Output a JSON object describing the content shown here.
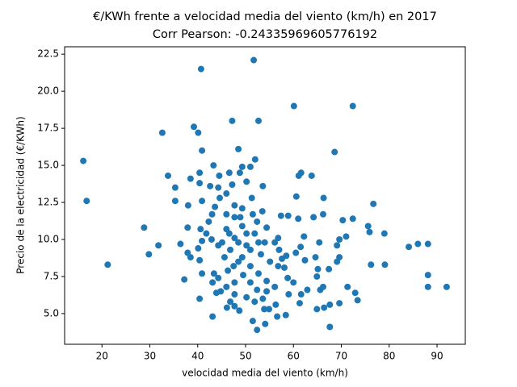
{
  "chart_data": {
    "type": "scatter",
    "title": "€/KWh frente a velocidad media del viento (km/h) en 2017",
    "subtitle": "Corr Pearson: -0.24335969605776192",
    "x_label": "velocidad media del viento (km/h)",
    "y_label": "Precio de la electricidad (€/KWh)",
    "color": "#1f77b4",
    "xlim": [
      12.2,
      95.9
    ],
    "ylim": [
      2.93,
      23.0
    ],
    "xticks": [
      20,
      30,
      40,
      50,
      60,
      70,
      80,
      90
    ],
    "yticks": [
      {
        "value": 5,
        "label": "5.0"
      },
      7.5,
      {
        "value": 10,
        "label": "10.0"
      },
      12.5,
      {
        "value": 15,
        "label": "15.0"
      },
      17.5,
      {
        "value": 20,
        "label": "20.0"
      },
      22.5
    ],
    "x": [
      16.1,
      16.8,
      21.2,
      28.8,
      29.8,
      31.8,
      32.6,
      33.8,
      35.3,
      35.3,
      36.4,
      37.2,
      37.9,
      38.0,
      38.5,
      39.2,
      40.1,
      40.7,
      40.9,
      40.4,
      40.4,
      40.9,
      40.6,
      40.4,
      43.3,
      42.6,
      43.1,
      44.5,
      47.2,
      48.5,
      51.7,
      52.7,
      52.0,
      51.0,
      49.3,
      53.6,
      60.1,
      72.4,
      68.6,
      60.6,
      61.1,
      61.6,
      63.8,
      66.3,
      76.7,
      72.4,
      70.3,
      75.6,
      75.9,
      79.0,
      71.0,
      69.6,
      69.1,
      84.1,
      86.0,
      88.1,
      76.2,
      79.1,
      88.1,
      88.1,
      92.0,
      72.9,
      73.4,
      71.3,
      69.6,
      67.6,
      66.4,
      67.6,
      64.9,
      62.9,
      64.9,
      65.1,
      69.1,
      69.6,
      67.4,
      66.2,
      65.6,
      60.0,
      61.6,
      61.3,
      61.0,
      61.5,
      62.2,
      64.2,
      66.2,
      65.4,
      64.6,
      62.4,
      60.5,
      57.4,
      58.9,
      56.8,
      56.1,
      57.0,
      57.6,
      58.1,
      58.8,
      59.0,
      58.4,
      56.6,
      56.3,
      54.9,
      53.9,
      54.1,
      52.4,
      51.5,
      48.7,
      47.7,
      46.1,
      44.8,
      43.9,
      43.1,
      43.4,
      40.9,
      40.4,
      38.5,
      37.9,
      40.1,
      40.9,
      41.8,
      42.3,
      43.0,
      43.6,
      44.6,
      44.3,
      46.0,
      47.2,
      46.6,
      48.8,
      50.2,
      51.3,
      53.5,
      51.5,
      54.4,
      54.0,
      53.2,
      51.0,
      49.5,
      47.5,
      45.6,
      44.3,
      42.9,
      46.6,
      48.9,
      50.2,
      48.5,
      46.8,
      45.1,
      49.3,
      51.0,
      52.7,
      54.4,
      56.1,
      54.4,
      52.4,
      50.2,
      47.7,
      46.0,
      44.3,
      47.7,
      49.3,
      51.9,
      47.7,
      46.0,
      47.7,
      49.3,
      51.0,
      48.5,
      46.3,
      51.9,
      53.6,
      46.8,
      55.1,
      56.8,
      58.5,
      47.7,
      50.2,
      52.7,
      52.4,
      46.0
    ],
    "values": [
      15.3,
      12.6,
      8.3,
      10.8,
      9.0,
      9.6,
      17.2,
      14.3,
      13.5,
      12.6,
      9.7,
      7.3,
      10.8,
      12.3,
      14.1,
      17.6,
      17.2,
      21.5,
      16.0,
      14.5,
      13.8,
      12.6,
      10.7,
      6.0,
      15.0,
      13.6,
      4.8,
      14.3,
      18.0,
      16.1,
      22.1,
      18.0,
      15.4,
      14.9,
      14.9,
      13.6,
      19.0,
      19.0,
      15.9,
      12.9,
      14.3,
      14.5,
      14.3,
      12.8,
      12.4,
      11.4,
      11.3,
      10.9,
      10.5,
      10.4,
      10.2,
      10.0,
      9.6,
      9.5,
      9.7,
      9.7,
      8.3,
      8.3,
      7.6,
      6.8,
      6.8,
      6.4,
      5.9,
      6.8,
      5.7,
      5.6,
      5.4,
      4.1,
      5.3,
      6.6,
      7.5,
      8.0,
      8.5,
      8.8,
      8.0,
      6.8,
      6.6,
      7.1,
      6.3,
      5.7,
      11.4,
      9.5,
      10.2,
      11.5,
      11.7,
      9.8,
      8.8,
      8.6,
      9.1,
      11.6,
      11.6,
      10.1,
      9.8,
      9.3,
      8.7,
      8.1,
      7.4,
      6.3,
      4.9,
      4.8,
      5.6,
      5.3,
      5.3,
      4.3,
      3.9,
      4.5,
      5.2,
      5.5,
      5.4,
      6.5,
      6.4,
      7.1,
      7.7,
      7.7,
      8.6,
      8.8,
      9.1,
      9.4,
      9.9,
      10.4,
      11.2,
      11.7,
      12.2,
      12.8,
      13.5,
      13.1,
      13.7,
      14.5,
      14.5,
      13.9,
      12.8,
      11.9,
      11.7,
      10.8,
      9.8,
      9.0,
      7.1,
      7.6,
      8.2,
      8.8,
      9.6,
      10.0,
      10.4,
      11.5,
      10.4,
      9.8,
      9.3,
      9.8,
      8.8,
      8.2,
      7.7,
      7.2,
      6.8,
      6.5,
      6.6,
      6.1,
      6.3,
      6.8,
      7.4,
      7.1,
      10.9,
      10.4,
      11.5,
      11.7,
      12.3,
      12.1,
      9.3,
      8.5,
      7.9,
      5.8,
      6.0,
      5.8,
      8.5,
      8.2,
      8.9,
      10.1,
      9.6,
      9.8,
      11.2,
      10.7
    ]
  }
}
